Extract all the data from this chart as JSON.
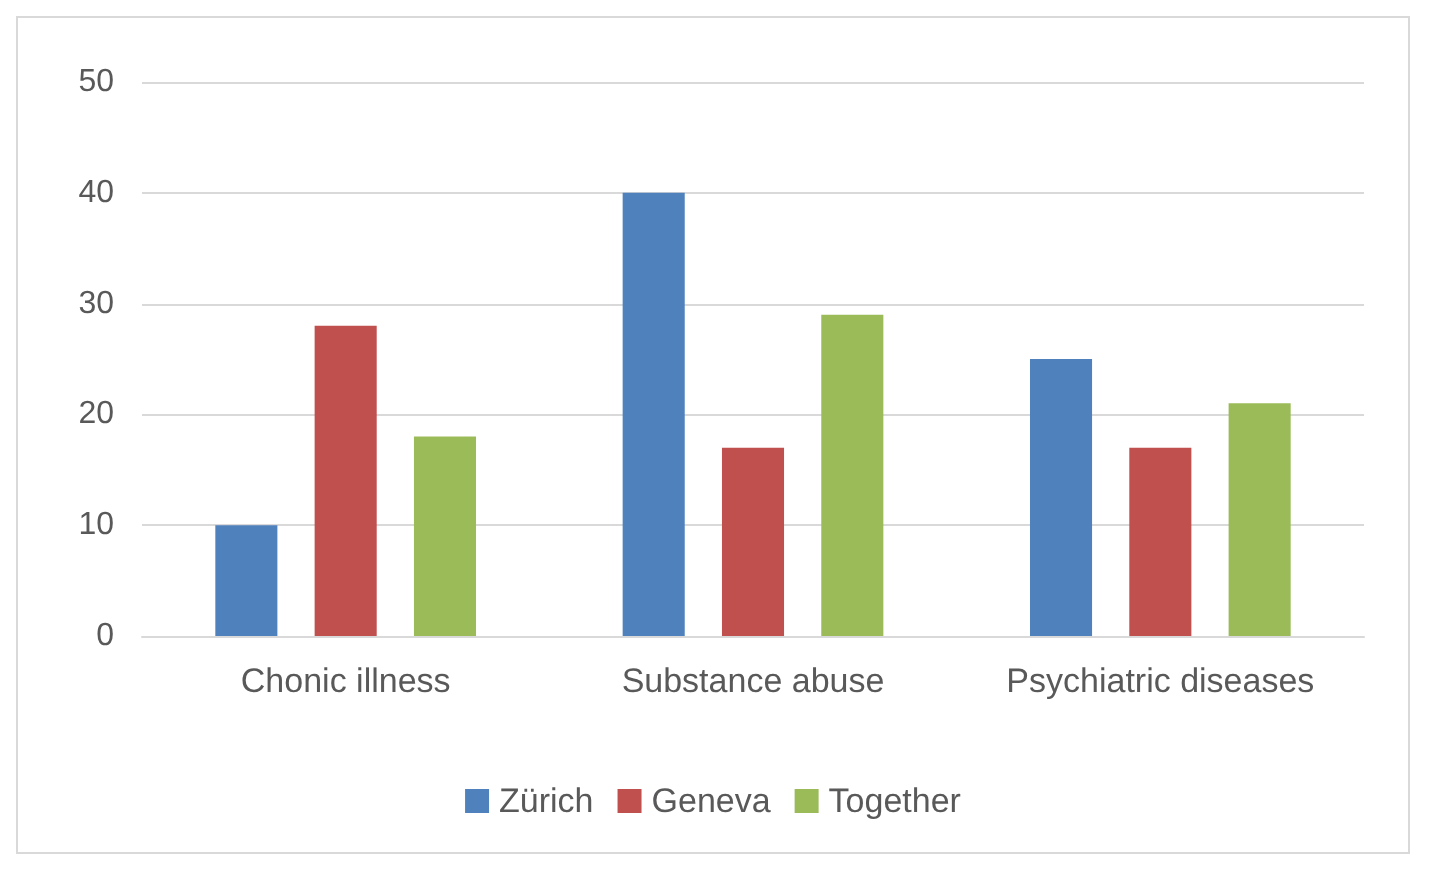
{
  "chart_data": {
    "type": "bar",
    "categories": [
      "Chonic illness",
      "Substance abuse",
      "Psychiatric diseases"
    ],
    "series": [
      {
        "name": "Zürich",
        "color": "#4f81bd",
        "values": [
          10,
          40,
          25
        ]
      },
      {
        "name": "Geneva",
        "color": "#c0504d",
        "values": [
          28,
          17,
          17
        ]
      },
      {
        "name": "Together",
        "color": "#9bbb59",
        "values": [
          18,
          29,
          21
        ]
      }
    ],
    "ylim": [
      0,
      50
    ],
    "yticks": [
      0,
      10,
      20,
      30,
      40,
      50
    ],
    "grid": "y",
    "legend": "bottom"
  }
}
